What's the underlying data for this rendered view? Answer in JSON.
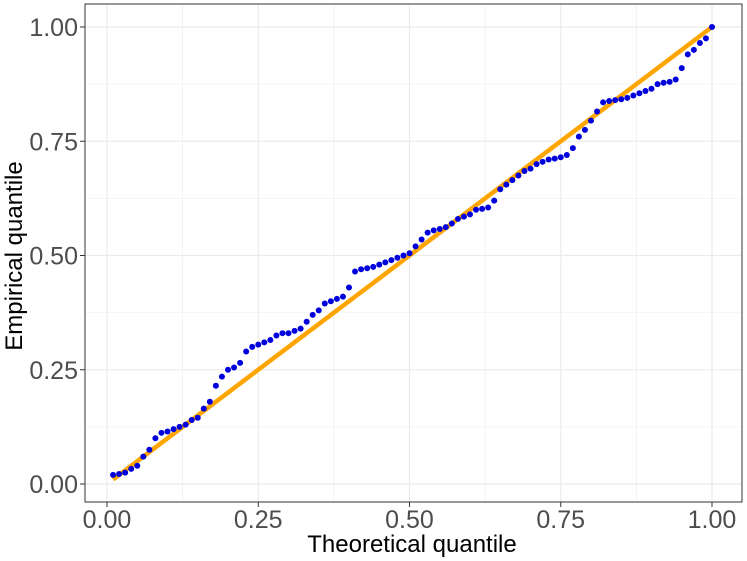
{
  "chart_data": {
    "type": "scatter",
    "title": "",
    "xlabel": "Theoretical quantile",
    "ylabel": "Empirical quantile",
    "xlim": [
      0.0,
      1.0
    ],
    "ylim": [
      0.0,
      1.0
    ],
    "x_ticks": [
      "0.00",
      "0.25",
      "0.50",
      "0.75",
      "1.00"
    ],
    "y_ticks": [
      "0.00",
      "0.25",
      "0.50",
      "0.75",
      "1.00"
    ],
    "grid": true,
    "colors": {
      "points": "#0000dd",
      "reference_line": "#ffa500",
      "grid": "#ebebeb",
      "panel_border": "#333333"
    },
    "reference_line": {
      "x": [
        0.01,
        1.0
      ],
      "y": [
        0.01,
        1.0
      ]
    },
    "series": [
      {
        "x": [
          0.01,
          0.02,
          0.03,
          0.04,
          0.05,
          0.06,
          0.07,
          0.08,
          0.09,
          0.1,
          0.11,
          0.12,
          0.13,
          0.14,
          0.15,
          0.16,
          0.17,
          0.18,
          0.19,
          0.2,
          0.21,
          0.22,
          0.23,
          0.24,
          0.25,
          0.26,
          0.27,
          0.28,
          0.29,
          0.3,
          0.31,
          0.32,
          0.33,
          0.34,
          0.35,
          0.36,
          0.37,
          0.38,
          0.39,
          0.4,
          0.41,
          0.42,
          0.43,
          0.44,
          0.45,
          0.46,
          0.47,
          0.48,
          0.49,
          0.5,
          0.51,
          0.52,
          0.53,
          0.54,
          0.55,
          0.56,
          0.57,
          0.58,
          0.59,
          0.6,
          0.61,
          0.62,
          0.63,
          0.64,
          0.65,
          0.66,
          0.67,
          0.68,
          0.69,
          0.7,
          0.71,
          0.72,
          0.73,
          0.74,
          0.75,
          0.76,
          0.77,
          0.78,
          0.79,
          0.8,
          0.81,
          0.82,
          0.83,
          0.84,
          0.85,
          0.86,
          0.87,
          0.88,
          0.89,
          0.9,
          0.91,
          0.92,
          0.93,
          0.94,
          0.95,
          0.96,
          0.97,
          0.98,
          0.99,
          1.0
        ],
        "y": [
          0.02,
          0.022,
          0.025,
          0.033,
          0.04,
          0.06,
          0.075,
          0.1,
          0.112,
          0.115,
          0.12,
          0.125,
          0.13,
          0.14,
          0.145,
          0.165,
          0.18,
          0.215,
          0.235,
          0.25,
          0.255,
          0.265,
          0.29,
          0.3,
          0.305,
          0.31,
          0.315,
          0.325,
          0.33,
          0.33,
          0.335,
          0.34,
          0.355,
          0.37,
          0.38,
          0.395,
          0.4,
          0.405,
          0.41,
          0.43,
          0.465,
          0.47,
          0.472,
          0.475,
          0.48,
          0.485,
          0.49,
          0.495,
          0.5,
          0.505,
          0.52,
          0.535,
          0.55,
          0.555,
          0.558,
          0.562,
          0.57,
          0.58,
          0.585,
          0.59,
          0.6,
          0.602,
          0.605,
          0.62,
          0.645,
          0.655,
          0.665,
          0.675,
          0.685,
          0.69,
          0.7,
          0.705,
          0.71,
          0.712,
          0.715,
          0.72,
          0.735,
          0.76,
          0.775,
          0.795,
          0.815,
          0.835,
          0.838,
          0.84,
          0.842,
          0.845,
          0.85,
          0.855,
          0.86,
          0.865,
          0.875,
          0.878,
          0.88,
          0.885,
          0.91,
          0.94,
          0.95,
          0.965,
          0.975,
          1.0
        ]
      }
    ]
  }
}
